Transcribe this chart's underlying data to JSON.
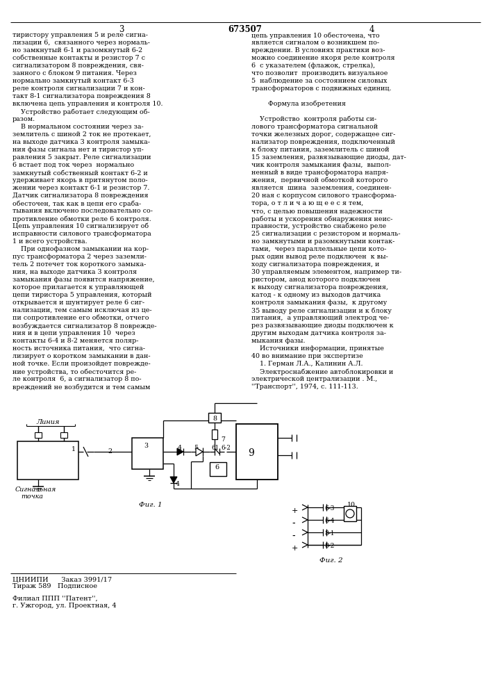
{
  "bg_color": "#ffffff",
  "title_patent": "673507",
  "col1_lines": [
    "тиристору управления 5 и реле сигна-",
    "лизации 6,  связанного через нормаль-",
    "но замкнутый 6-1 и разомкнутый 6-2",
    "собственные контакты и резистор 7 с",
    "сигнализатором 8 повреждения, свя-",
    "занного с блоком 9 питания. Через",
    "нормально замкнутый контакт 6-3",
    "реле контроля сигнализации 7 и кон-",
    "такт 8-1 сигнализатора повреждения 8",
    "включена цепь управления и контроля 10.",
    "    Устройство работает следующим об-",
    "разом.",
    "    В нормальном состоянии через за-",
    "землитель с шиной 2 ток не протекает,",
    "на выходе датчика 3 контроля замыка-",
    "ния фазы сигнала нет и тиристор уп-",
    "равления 5 закрыт. Реле сигнализации",
    "6 встает под ток через  нормально",
    "замкнутый собственный контакт 6-2 и",
    "удерживает якорь в притянутом поло-",
    "жении через контакт 6-1 и резистор 7.",
    "Датчик сигнализатора 8 повреждения",
    "обесточен, так как в цепи его сраба-",
    "тывания включено последовательно со-",
    "противление обмотки реле 6 контроля.",
    "Цепь управления 10 сигнализирует об",
    "исправности силового трансформатора",
    "1 и всего устройства.",
    "    При однофазном замыкании на кор-",
    "пус трансформатора 2 через заземли-",
    "тель 2 потечет ток короткого замыка-",
    "ния, на выходе датчика 3 контроля",
    "замыкания фазы появится напряжение,",
    "которое прилагается к управляющей",
    "цепи тиристора 5 управления, который",
    "открывается и шунтирует реле 6 сиг-",
    "нализации, тем самым исключая из це-",
    "пи сопротивление его обмотки, отчего",
    "возбуждается сигнализатор 8 поврежде-",
    "ния и в цепи управления 10  через",
    "контакты 6-4 и 8-2 меняется поляр-",
    "ность источника питания,  что сигна-",
    "лизирует о коротком замыкании в дан-",
    "ной точке. Если произойдет поврежде-",
    "ние устройства, то обесточится ре-",
    "ле контроля  6, а сигнализатор 8 по-",
    "вреждений не возбудится и тем самым"
  ],
  "col2_lines": [
    "цепь управления 10 обесточена, что",
    "является сигналом о возникшем по-",
    "вреждении. В условиях практики воз-",
    "можно соединение якоря реле контроля",
    "6  с указателем (флажок, стрелка),",
    "что позволит  производить визуальное",
    "5  наблюдение за состоянием силовых",
    "трансформаторов с подвижных единиц.",
    "",
    "        Формула изобретения",
    "",
    "    Устройство  контроля работы си-",
    "лового трансформатора сигнальной",
    "точки железных дорог, содержащее сиг-",
    "нализатор повреждения, подключенный",
    "к блоку питания, заземлитель с шиной",
    "15 заземления, развязывающие диоды, дат-",
    "чик контроля замыкания фазы,  выпол-",
    "ненный в виде трансформатора напря-",
    "жения,  первичной обмоткой которого",
    "является  шина  заземления, соединен-",
    "20 ная с корпусом силового трансформа-",
    "тора, о т л и ч а ю щ е е с я тем,",
    "что, с целью повышения надежности",
    "работы и ускорения обнаружения неис-",
    "правности, устройство снабжено реле",
    "25 сигнализации с резистором и нормаль-",
    "но замкнутыми и разомкнутыми контак-",
    "тами,  через параллельные цепи кото-",
    "рых один вывод реле подключен  к вы-",
    "ходу сигнализатора повреждения, и",
    "30 управляемым элементом, например ти-",
    "ристором, анод которого подключен",
    "к выходу сигнализатора повреждения,",
    "катод - к одному из выходов датчика",
    "контроля замыкания фазы,  к другому",
    "35 выводу реле сигнализации и к блоку",
    "питания,  а управляющий электрод че-",
    "рез развязывающие диоды подключен к",
    "другим выходам датчика контроля за-",
    "мыкания фазы.",
    "    Источники информации, принятые",
    "40 во внимание при экспертизе",
    "    1. Герман Л.А., Калинин А.Л.",
    "    Электроснабжение автоблокировки и",
    "электрической централизации . М.,",
    "''Транспорт'', 1974, с. 111-113."
  ],
  "footer_lines": [
    "ЦНИИПИ      Заказ 3991/17",
    "Тираж 589   Подписное"
  ],
  "footer_lines2": [
    "Филиал ППП ''Патент'',",
    "г. Ужгород, ул. Проектная, 4"
  ]
}
